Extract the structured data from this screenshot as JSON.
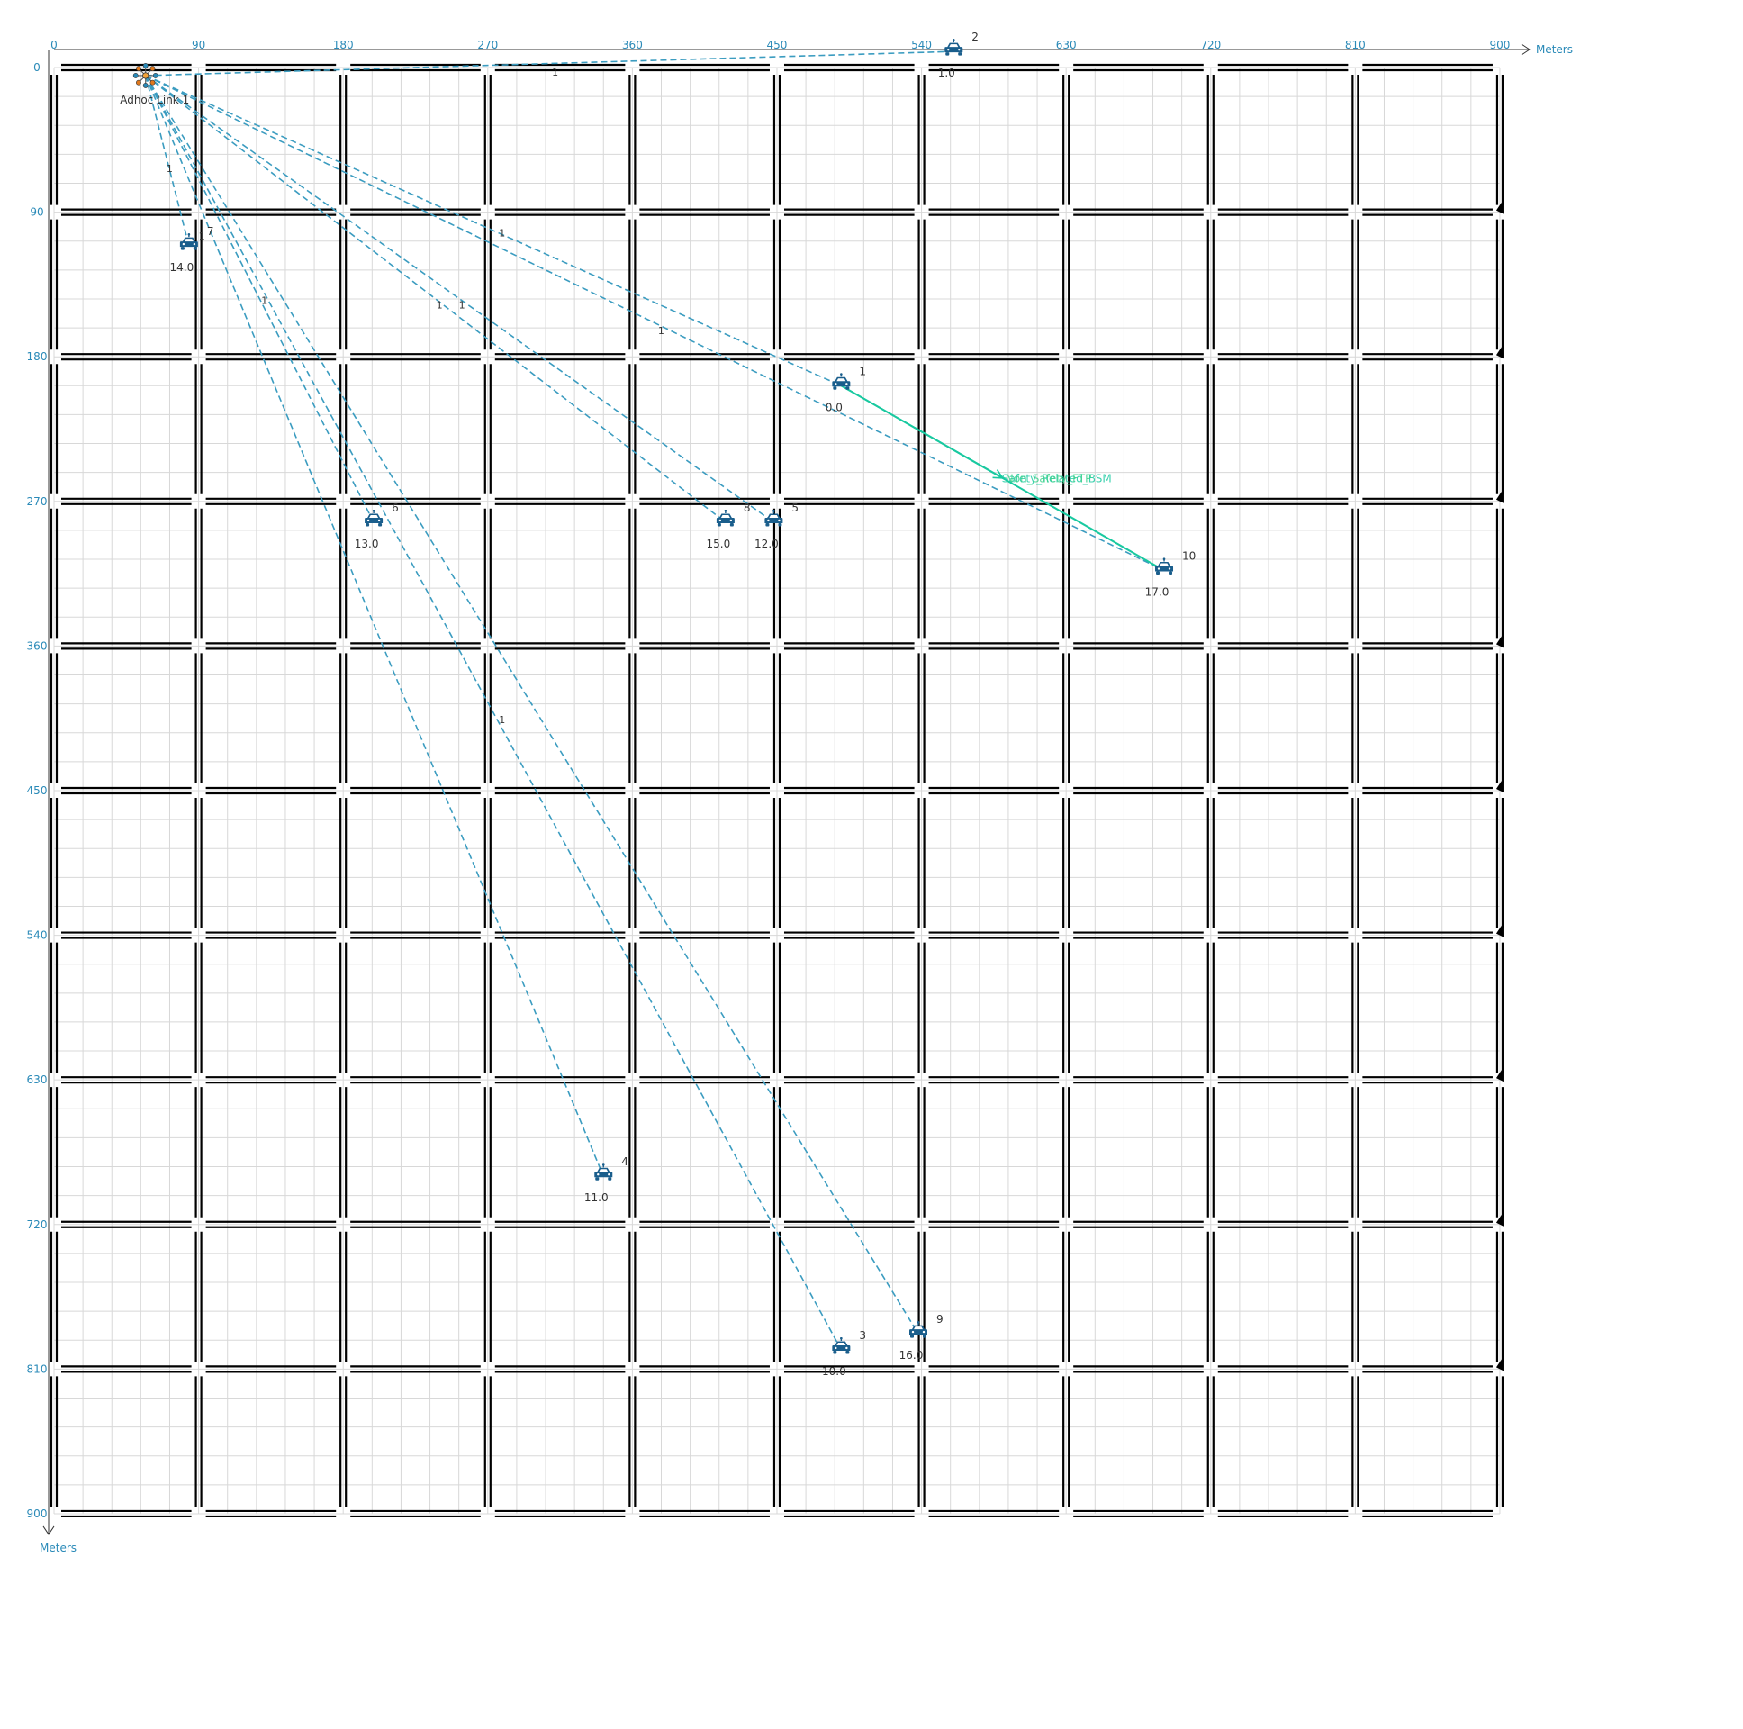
{
  "colors": {
    "axis_text": "#2a8ab8",
    "link": "#3b9cc0",
    "flow": "#19c9a0",
    "vehicle": "#1a5e8c",
    "road": "#000000",
    "grid": "#d8d8d8"
  },
  "axes": {
    "x_unit": "Meters",
    "y_unit": "Meters",
    "x_ticks": [
      "0",
      "90",
      "180",
      "270",
      "360",
      "450",
      "540",
      "630",
      "720",
      "810",
      "900"
    ],
    "y_ticks": [
      "0",
      "90",
      "180",
      "270",
      "360",
      "450",
      "540",
      "630",
      "720",
      "810",
      "900"
    ]
  },
  "adhoc": {
    "label": "Adhoc Link 1",
    "icon": "network-hub-icon",
    "x": 57,
    "y": 5
  },
  "vehicles": [
    {
      "id": "1",
      "value": "0.0",
      "x": 490,
      "y": 198,
      "icon": "car-icon"
    },
    {
      "id": "2",
      "value": "1.0",
      "x": 560,
      "y": -10,
      "icon": "car-icon"
    },
    {
      "id": "3",
      "value": "10.0",
      "x": 490,
      "y": 798,
      "icon": "car-icon"
    },
    {
      "id": "4",
      "value": "11.0",
      "x": 342,
      "y": 690,
      "icon": "car-icon"
    },
    {
      "id": "5",
      "value": "12.0",
      "x": 448,
      "y": 283,
      "icon": "car-icon"
    },
    {
      "id": "6",
      "value": "13.0",
      "x": 199,
      "y": 283,
      "icon": "car-icon"
    },
    {
      "id": "7",
      "value": "14.0",
      "x": 84,
      "y": 111,
      "icon": "car-icon"
    },
    {
      "id": "8",
      "value": "15.0",
      "x": 418,
      "y": 283,
      "icon": "car-icon"
    },
    {
      "id": "9",
      "value": "16.0",
      "x": 538,
      "y": 788,
      "icon": "car-icon"
    },
    {
      "id": "10",
      "value": "17.0",
      "x": 691,
      "y": 313,
      "icon": "car-icon"
    }
  ],
  "link_labels": [
    {
      "text": "1",
      "x": 310,
      "y": 5
    },
    {
      "text": "1",
      "x": 70,
      "y": 65
    },
    {
      "text": "1",
      "x": 90,
      "y": 107
    },
    {
      "text": "1",
      "x": 277,
      "y": 105
    },
    {
      "text": "1",
      "x": 238,
      "y": 150
    },
    {
      "text": "1",
      "x": 252,
      "y": 150
    },
    {
      "text": "1",
      "x": 376,
      "y": 166
    },
    {
      "text": "1",
      "x": 129,
      "y": 147
    },
    {
      "text": "1",
      "x": 277,
      "y": 408
    }
  ],
  "flow": {
    "labels": [
      "Safety_Related_BSM",
      "Non_Safety_FTP"
    ],
    "label_x": 590,
    "label_y": 258
  }
}
